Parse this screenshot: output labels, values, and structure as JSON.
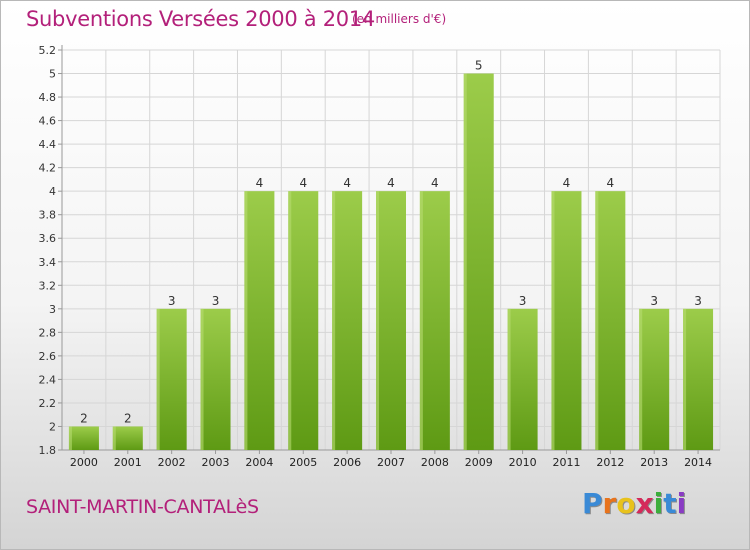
{
  "header": {
    "title": "Subventions Versées 2000 à 2014",
    "subtitle": "(en milliers d'€)"
  },
  "footer": {
    "commune": "SAINT-MARTIN-CANTALèS",
    "logo_letters": [
      "P",
      "r",
      "o",
      "x",
      "i",
      "t",
      "i"
    ],
    "logo_colors": [
      "#3a8ad6",
      "#e8731c",
      "#e8c21c",
      "#d42a5a",
      "#3cae3c",
      "#3a8ad6",
      "#8a3cc4"
    ]
  },
  "colors": {
    "bar_top": "#9ccc4a",
    "bar_bottom": "#5e9a14",
    "grid": "#d6d6d6",
    "axis": "#999999"
  },
  "chart_data": {
    "type": "bar",
    "categories": [
      "2000",
      "2001",
      "2002",
      "2003",
      "2004",
      "2005",
      "2006",
      "2007",
      "2008",
      "2009",
      "2010",
      "2011",
      "2012",
      "2013",
      "2014"
    ],
    "values": [
      2,
      2,
      3,
      3,
      4,
      4,
      4,
      4,
      4,
      5,
      3,
      4,
      4,
      3,
      3
    ],
    "data_labels": [
      "2",
      "2",
      "3",
      "3",
      "4",
      "4",
      "4",
      "4",
      "4",
      "5",
      "3",
      "4",
      "4",
      "3",
      "3"
    ],
    "title": "Subventions Versées 2000 à 2014",
    "xlabel": "",
    "ylabel": "",
    "yticks": [
      1.8,
      2,
      2.2,
      2.4,
      2.6,
      2.8,
      3,
      3.2,
      3.4,
      3.6,
      3.8,
      4,
      4.2,
      4.4,
      4.6,
      4.8,
      5,
      5.2
    ],
    "ytick_labels": [
      "1.8",
      "2",
      "2.2",
      "2.4",
      "2.6",
      "2.8",
      "3",
      "3.2",
      "3.4",
      "3.6",
      "3.8",
      "4",
      "4.2",
      "4.4",
      "4.6",
      "4.8",
      "5",
      "5.2"
    ],
    "ylim": [
      1.8,
      5.2
    ],
    "grid": true,
    "legend": "none"
  }
}
